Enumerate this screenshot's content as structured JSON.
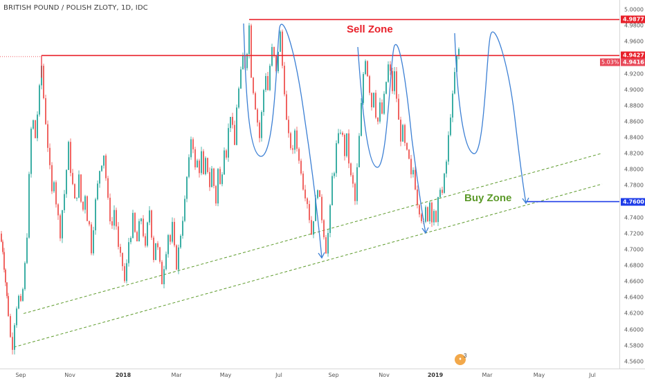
{
  "title": "BRITISH POUND / POLISH ZLOTY, 1D, IDC",
  "annotations": {
    "sell_zone": "Sell Zone",
    "buy_zone": "Buy Zone"
  },
  "price_badges": [
    {
      "label": "4.9877",
      "value": 4.9877,
      "color": "#e8202a"
    },
    {
      "label": "4.9427",
      "value": 4.9427,
      "color": "#e8202a"
    },
    {
      "label": "4.9416",
      "value": 4.9416,
      "color": "#e84a5a"
    },
    {
      "label": "4.7600",
      "value": 4.76,
      "color": "#1e3ce8"
    }
  ],
  "change_badge": "5.03%",
  "idea_marker": {
    "count": "3"
  },
  "chart_data": {
    "type": "candlestick",
    "y_ticks": [
      "5.0000",
      "4.9800",
      "4.9600",
      "4.9400",
      "4.9200",
      "4.9000",
      "4.8800",
      "4.8600",
      "4.8400",
      "4.8200",
      "4.8000",
      "4.7800",
      "4.7600",
      "4.7400",
      "4.7200",
      "4.7000",
      "4.6800",
      "4.6600",
      "4.6400",
      "4.6200",
      "4.6000",
      "4.5800",
      "4.5600"
    ],
    "ylim": [
      4.5512,
      5.0122
    ],
    "x_ticks": [
      {
        "label": "Sep",
        "bold": false
      },
      {
        "label": "Nov",
        "bold": false
      },
      {
        "label": "2018",
        "bold": true
      },
      {
        "label": "Mar",
        "bold": false
      },
      {
        "label": "May",
        "bold": false
      },
      {
        "label": "Jul",
        "bold": false
      },
      {
        "label": "Sep",
        "bold": false
      },
      {
        "label": "Nov",
        "bold": false
      },
      {
        "label": "2019",
        "bold": true
      },
      {
        "label": "Mar",
        "bold": false
      },
      {
        "label": "May",
        "bold": false
      },
      {
        "label": "Jul",
        "bold": false
      }
    ],
    "price_path": [
      [
        0,
        4.72
      ],
      [
        4,
        4.7
      ],
      [
        8,
        4.66
      ],
      [
        12,
        4.62
      ],
      [
        15,
        4.59
      ],
      [
        18,
        4.58
      ],
      [
        21,
        4.61
      ],
      [
        24,
        4.63
      ],
      [
        27,
        4.64
      ],
      [
        30,
        4.63
      ],
      [
        33,
        4.65
      ],
      [
        36,
        4.68
      ],
      [
        39,
        4.72
      ],
      [
        42,
        4.79
      ],
      [
        45,
        4.85
      ],
      [
        48,
        4.86
      ],
      [
        51,
        4.84
      ],
      [
        54,
        4.87
      ],
      [
        57,
        4.9
      ],
      [
        60,
        4.93
      ],
      [
        63,
        4.89
      ],
      [
        66,
        4.86
      ],
      [
        69,
        4.83
      ],
      [
        72,
        4.8
      ],
      [
        75,
        4.77
      ],
      [
        78,
        4.79
      ],
      [
        81,
        4.76
      ],
      [
        84,
        4.74
      ],
      [
        87,
        4.72
      ],
      [
        90,
        4.75
      ],
      [
        93,
        4.77
      ],
      [
        96,
        4.8
      ],
      [
        99,
        4.83
      ],
      [
        102,
        4.8
      ],
      [
        105,
        4.78
      ],
      [
        108,
        4.76
      ],
      [
        111,
        4.77
      ],
      [
        114,
        4.79
      ],
      [
        117,
        4.76
      ],
      [
        120,
        4.75
      ],
      [
        123,
        4.77
      ],
      [
        126,
        4.74
      ],
      [
        129,
        4.73
      ],
      [
        132,
        4.7
      ],
      [
        135,
        4.73
      ],
      [
        138,
        4.76
      ],
      [
        141,
        4.78
      ],
      [
        144,
        4.8
      ],
      [
        147,
        4.81
      ],
      [
        150,
        4.82
      ],
      [
        153,
        4.79
      ],
      [
        156,
        4.76
      ],
      [
        159,
        4.74
      ],
      [
        162,
        4.73
      ],
      [
        165,
        4.75
      ],
      [
        168,
        4.73
      ],
      [
        171,
        4.7
      ],
      [
        174,
        4.69
      ],
      [
        177,
        4.68
      ],
      [
        180,
        4.66
      ],
      [
        183,
        4.68
      ],
      [
        186,
        4.71
      ],
      [
        189,
        4.72
      ],
      [
        192,
        4.74
      ],
      [
        195,
        4.72
      ],
      [
        198,
        4.71
      ],
      [
        201,
        4.73
      ],
      [
        204,
        4.74
      ],
      [
        207,
        4.72
      ],
      [
        210,
        4.7
      ],
      [
        213,
        4.73
      ],
      [
        216,
        4.75
      ],
      [
        219,
        4.72
      ],
      [
        222,
        4.69
      ],
      [
        225,
        4.71
      ],
      [
        228,
        4.7
      ],
      [
        231,
        4.68
      ],
      [
        234,
        4.66
      ],
      [
        237,
        4.68
      ],
      [
        240,
        4.7
      ],
      [
        243,
        4.72
      ],
      [
        246,
        4.71
      ],
      [
        249,
        4.73
      ],
      [
        252,
        4.7
      ],
      [
        255,
        4.68
      ],
      [
        258,
        4.7
      ],
      [
        261,
        4.72
      ],
      [
        264,
        4.74
      ],
      [
        267,
        4.76
      ],
      [
        270,
        4.79
      ],
      [
        273,
        4.81
      ],
      [
        276,
        4.84
      ],
      [
        279,
        4.83
      ],
      [
        282,
        4.8
      ],
      [
        285,
        4.81
      ],
      [
        288,
        4.8
      ],
      [
        291,
        4.82
      ],
      [
        294,
        4.79
      ],
      [
        297,
        4.81
      ],
      [
        300,
        4.8
      ],
      [
        303,
        4.78
      ],
      [
        306,
        4.8
      ],
      [
        309,
        4.78
      ],
      [
        312,
        4.76
      ],
      [
        315,
        4.8
      ],
      [
        318,
        4.78
      ],
      [
        321,
        4.8
      ],
      [
        324,
        4.83
      ],
      [
        327,
        4.82
      ],
      [
        330,
        4.85
      ],
      [
        333,
        4.87
      ],
      [
        336,
        4.85
      ],
      [
        339,
        4.83
      ],
      [
        342,
        4.88
      ],
      [
        345,
        4.9
      ],
      [
        348,
        4.92
      ],
      [
        351,
        4.94
      ],
      [
        354,
        4.93
      ],
      [
        357,
        4.95
      ],
      [
        360,
        4.98
      ],
      [
        363,
        4.92
      ],
      [
        366,
        4.9
      ],
      [
        369,
        4.88
      ],
      [
        372,
        4.86
      ],
      [
        375,
        4.84
      ],
      [
        378,
        4.87
      ],
      [
        381,
        4.9
      ],
      [
        384,
        4.92
      ],
      [
        387,
        4.9
      ],
      [
        390,
        4.93
      ],
      [
        393,
        4.95
      ],
      [
        396,
        4.94
      ],
      [
        399,
        4.92
      ],
      [
        402,
        4.95
      ],
      [
        405,
        4.97
      ],
      [
        408,
        4.93
      ],
      [
        411,
        4.9
      ],
      [
        414,
        4.86
      ],
      [
        417,
        4.84
      ],
      [
        420,
        4.83
      ],
      [
        423,
        4.82
      ],
      [
        426,
        4.85
      ],
      [
        429,
        4.83
      ],
      [
        432,
        4.81
      ],
      [
        435,
        4.8
      ],
      [
        438,
        4.78
      ],
      [
        441,
        4.77
      ],
      [
        444,
        4.76
      ],
      [
        447,
        4.74
      ],
      [
        450,
        4.72
      ],
      [
        453,
        4.74
      ],
      [
        456,
        4.76
      ],
      [
        459,
        4.78
      ],
      [
        462,
        4.76
      ],
      [
        465,
        4.74
      ],
      [
        468,
        4.72
      ],
      [
        471,
        4.7
      ],
      [
        474,
        4.72
      ],
      [
        477,
        4.75
      ],
      [
        480,
        4.79
      ],
      [
        483,
        4.8
      ],
      [
        486,
        4.83
      ],
      [
        489,
        4.84
      ],
      [
        492,
        4.85
      ],
      [
        495,
        4.84
      ],
      [
        498,
        4.82
      ],
      [
        501,
        4.84
      ],
      [
        504,
        4.81
      ],
      [
        507,
        4.79
      ],
      [
        510,
        4.78
      ],
      [
        513,
        4.76
      ],
      [
        516,
        4.8
      ],
      [
        519,
        4.84
      ],
      [
        522,
        4.88
      ],
      [
        525,
        4.92
      ],
      [
        528,
        4.94
      ],
      [
        531,
        4.92
      ],
      [
        534,
        4.9
      ],
      [
        537,
        4.88
      ],
      [
        540,
        4.9
      ],
      [
        543,
        4.87
      ],
      [
        546,
        4.86
      ],
      [
        549,
        4.88
      ],
      [
        552,
        4.87
      ],
      [
        555,
        4.89
      ],
      [
        558,
        4.91
      ],
      [
        561,
        4.93
      ],
      [
        564,
        4.92
      ],
      [
        567,
        4.9
      ],
      [
        570,
        4.92
      ],
      [
        573,
        4.89
      ],
      [
        576,
        4.86
      ],
      [
        579,
        4.84
      ],
      [
        582,
        4.85
      ],
      [
        585,
        4.83
      ],
      [
        588,
        4.82
      ],
      [
        591,
        4.81
      ],
      [
        594,
        4.79
      ],
      [
        597,
        4.8
      ],
      [
        600,
        4.78
      ],
      [
        603,
        4.76
      ],
      [
        606,
        4.75
      ],
      [
        609,
        4.74
      ],
      [
        612,
        4.73
      ],
      [
        615,
        4.75
      ],
      [
        618,
        4.74
      ],
      [
        621,
        4.76
      ],
      [
        624,
        4.74
      ],
      [
        627,
        4.75
      ],
      [
        630,
        4.73
      ],
      [
        633,
        4.76
      ],
      [
        636,
        4.78
      ],
      [
        639,
        4.77
      ],
      [
        642,
        4.79
      ],
      [
        645,
        4.81
      ],
      [
        648,
        4.84
      ],
      [
        651,
        4.87
      ],
      [
        654,
        4.89
      ],
      [
        657,
        4.92
      ],
      [
        660,
        4.94
      ],
      [
        663,
        4.95
      ]
    ],
    "levels": [
      {
        "name": "sell-top",
        "value": 4.9877,
        "color": "#e8202a"
      },
      {
        "name": "sell-bottom",
        "value": 4.9427,
        "color": "#e8202a"
      },
      {
        "name": "buy-target",
        "value": 4.76,
        "color": "#1e3ce8"
      }
    ],
    "channel_lines": [
      {
        "p1": [
          34,
          4.62
        ],
        "p2": [
          870,
          4.8205
        ],
        "color": "#5c9a2a"
      },
      {
        "p1": [
          20,
          4.578
        ],
        "p2": [
          870,
          4.782
        ],
        "color": "#5c9a2a"
      }
    ],
    "colors": {
      "up": "#26a69a",
      "down": "#ef5350",
      "projection": "#3b7fd4"
    }
  }
}
